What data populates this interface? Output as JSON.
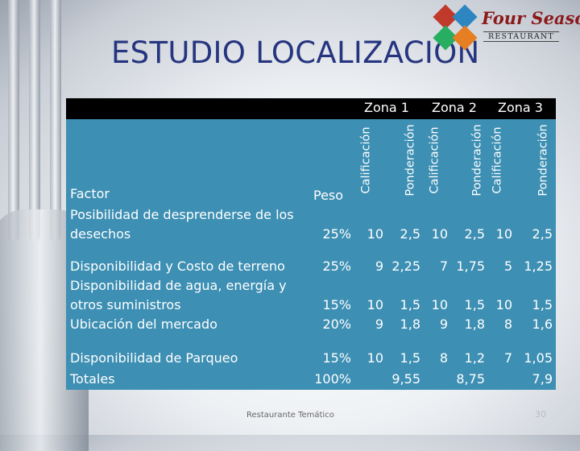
{
  "title": "ESTUDIO LOCALIZACIÓN",
  "logo": {
    "name": "Four Seasons",
    "sub": "RESTAURANT"
  },
  "table": {
    "zones": [
      "Zona 1",
      "Zona 2",
      "Zona 3"
    ],
    "sub_headers": [
      "Calificación",
      "Ponderación",
      "Calificación",
      "Ponderación",
      "Calificación",
      "Ponderación"
    ],
    "factor_header": "Factor",
    "weight_header": "Peso",
    "factors": [
      "Posibilidad de desprenderse de los",
      "desechos",
      "Disponibilidad y Costo de terreno",
      "Disponibilidad de agua, energía y",
      "otros suministros",
      "Ubicación del mercado",
      "Disponibilidad de Parqueo",
      "Totales"
    ],
    "rows": [
      [
        "25%",
        "10",
        "2,5",
        "10",
        "2,5",
        "10",
        "2,5"
      ],
      [
        "25%",
        "9",
        "2,25",
        "7",
        "1,75",
        "5",
        "1,25"
      ],
      [
        "15%",
        "10",
        "1,5",
        "10",
        "1,5",
        "10",
        "1,5"
      ],
      [
        "20%",
        "9",
        "1,8",
        "9",
        "1,8",
        "8",
        "1,6"
      ],
      [
        "15%",
        "10",
        "1,5",
        "8",
        "1,2",
        "7",
        "1,05"
      ],
      [
        "100%",
        "",
        "9,55",
        "",
        "8,75",
        "",
        "7,9"
      ]
    ]
  },
  "footer": "Restaurante Temático",
  "page_number": "30"
}
